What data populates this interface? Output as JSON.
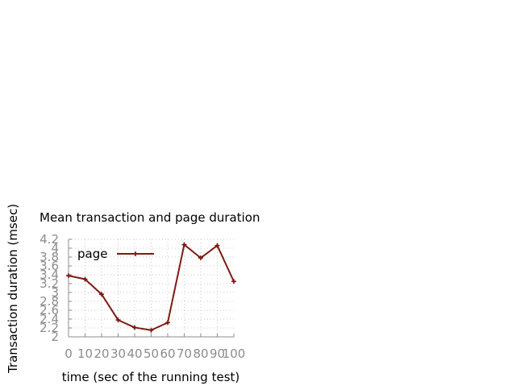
{
  "chart_data": {
    "type": "line",
    "title": "Mean transaction and page duration",
    "xlabel": "time (sec of the running test)",
    "ylabel": "Transaction duration (msec)",
    "xlim": [
      0,
      100
    ],
    "ylim": [
      2,
      4.2
    ],
    "x_ticks": [
      "0",
      "10",
      "20",
      "30",
      "40",
      "50",
      "60",
      "70",
      "80",
      "90",
      "100"
    ],
    "y_ticks": [
      "2",
      "2.2",
      "2.4",
      "2.6",
      "2.8",
      "3",
      "3.2",
      "3.4",
      "3.6",
      "3.8",
      "4",
      "4.2"
    ],
    "grid": true,
    "legend_position": "top-left",
    "series": [
      {
        "name": "page",
        "color": "#7f1a12",
        "x": [
          0,
          10,
          20,
          30,
          40,
          50,
          60,
          70,
          80,
          90,
          100
        ],
        "y": [
          3.38,
          3.3,
          2.96,
          2.38,
          2.21,
          2.15,
          2.32,
          4.08,
          3.78,
          4.06,
          3.25
        ]
      }
    ]
  }
}
